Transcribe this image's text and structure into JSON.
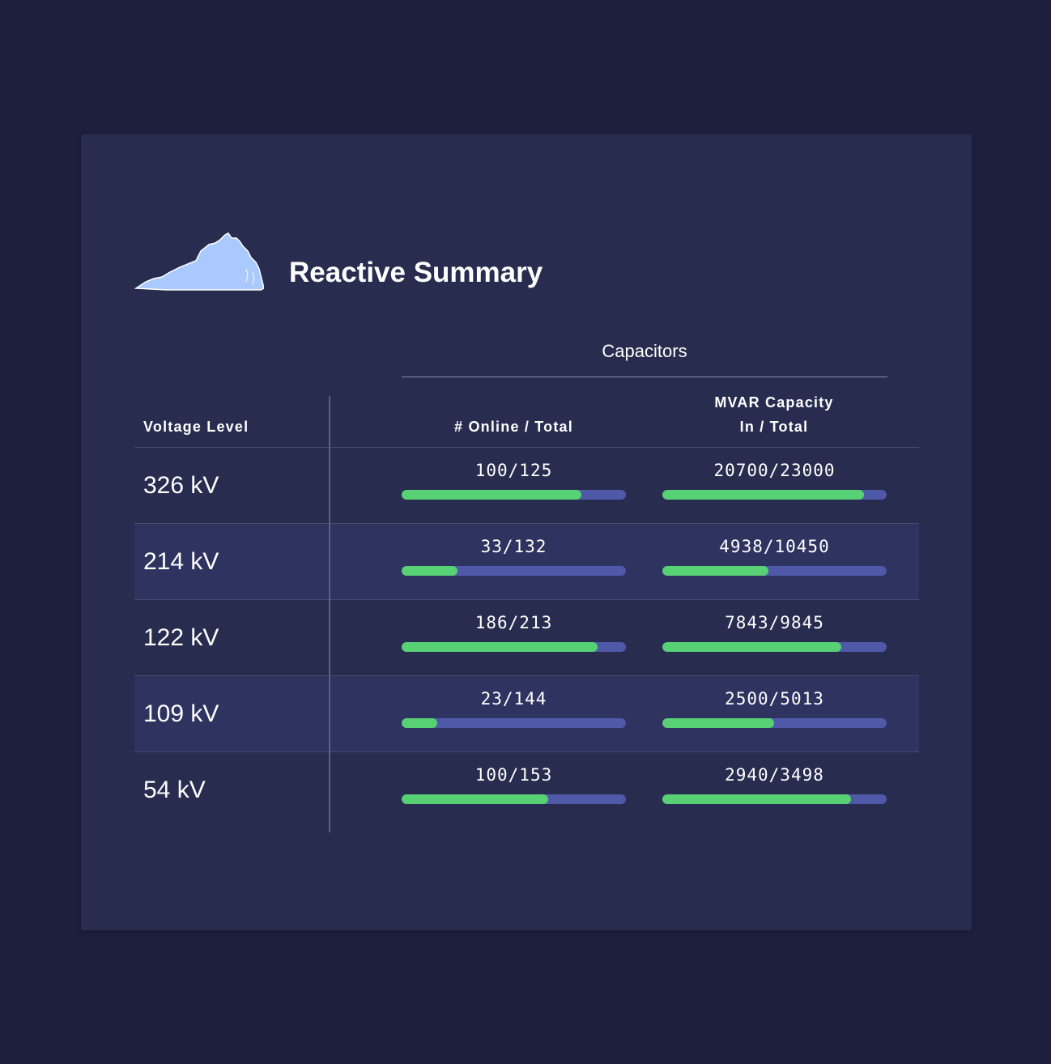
{
  "header": {
    "title": "Reactive Summary",
    "icon": "virginia-map-icon",
    "icon_color": "#a9c9ff"
  },
  "table": {
    "group_header": "Capacitors",
    "columns": {
      "voltage": "Voltage Level",
      "online": "# Online / Total",
      "mvar_line1": "MVAR Capacity",
      "mvar_line2": "In / Total"
    },
    "rows": [
      {
        "voltage": "326 kV",
        "online_text": "100/125",
        "online_fraction": 0.8,
        "mvar_text": "20700/23000",
        "mvar_fraction": 0.9
      },
      {
        "voltage": "214 kV",
        "online_text": "33/132",
        "online_fraction": 0.25,
        "mvar_text": "4938/10450",
        "mvar_fraction": 0.4725
      },
      {
        "voltage": "122 kV",
        "online_text": "186/213",
        "online_fraction": 0.8732,
        "mvar_text": "7843/9845",
        "mvar_fraction": 0.7966
      },
      {
        "voltage": "109 kV",
        "online_text": "23/144",
        "online_fraction": 0.1597,
        "mvar_text": "2500/5013",
        "mvar_fraction": 0.4987
      },
      {
        "voltage": "54 kV",
        "online_text": "100/153",
        "online_fraction": 0.6536,
        "mvar_text": "2940/3498",
        "mvar_fraction": 0.8405
      }
    ]
  },
  "colors": {
    "background": "#1e1f3d",
    "card": "#282c4f",
    "alt_row": "#2e3360",
    "bar_track": "#5059a8",
    "bar_fill": "#57d173"
  }
}
